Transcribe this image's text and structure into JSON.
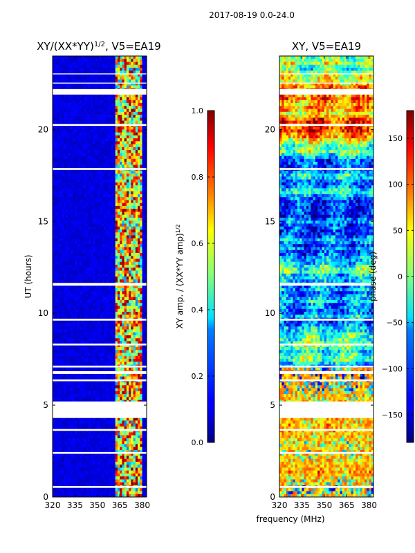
{
  "suptitle": "2017-08-19 0.0-24.0",
  "shared_xlabel": "frequency (MHz)",
  "colors": {
    "no_data": "#ffffff",
    "axis": "#000000"
  },
  "chart_data": [
    {
      "type": "heatmap",
      "title": "XY/(XX*YY)",
      "title_exponent": "1/2",
      "title_suffix": ", V5=EA19",
      "xlabel": "",
      "ylabel": "UT (hours)",
      "xlim": [
        320,
        383
      ],
      "ylim": [
        0,
        24
      ],
      "xticks": [
        320,
        335,
        350,
        365,
        380
      ],
      "yticks": [
        0,
        5,
        10,
        15,
        20
      ],
      "colorbar": {
        "label": "XY amp. / (XX*YY amp)",
        "label_exponent": "1/2",
        "range": [
          0.0,
          1.0
        ],
        "ticks": [
          0.0,
          0.2,
          0.4,
          0.6,
          0.8,
          1.0
        ],
        "tick_labels": [
          "0.0",
          "0.2",
          "0.4",
          "0.6",
          "0.8",
          "1.0"
        ],
        "colormap": "jet"
      },
      "data_gaps_hours": [
        [
          4.3,
          5.2
        ],
        [
          6.7,
          6.85
        ],
        [
          21.9,
          22.2
        ],
        [
          20.2,
          20.3
        ],
        [
          17.8,
          17.9
        ],
        [
          23.0,
          23.05
        ],
        [
          22.5,
          22.55
        ],
        [
          11.5,
          11.65
        ],
        [
          9.6,
          9.7
        ],
        [
          8.25,
          8.35
        ],
        [
          7.05,
          7.15
        ],
        [
          6.3,
          6.4
        ],
        [
          3.6,
          3.7
        ],
        [
          2.35,
          2.45
        ],
        [
          0.5,
          0.6
        ]
      ],
      "high_amplitude_band_mhz": [
        362,
        380
      ]
    },
    {
      "type": "heatmap",
      "title": "XY, V5=EA19",
      "xlabel": "",
      "ylabel": "",
      "xlim": [
        320,
        383
      ],
      "ylim": [
        0,
        24
      ],
      "xticks": [
        320,
        335,
        350,
        365,
        380
      ],
      "yticks": [
        0,
        5,
        10,
        15,
        20
      ],
      "colorbar": {
        "label": "phase (deg)",
        "range": [
          -180,
          180
        ],
        "ticks": [
          -150,
          -100,
          -50,
          0,
          50,
          100,
          150
        ],
        "tick_labels": [
          "−150",
          "−100",
          "−50",
          "0",
          "50",
          "100",
          "150"
        ],
        "colormap": "jet"
      },
      "data_gaps_hours": [
        [
          4.3,
          5.2
        ],
        [
          6.7,
          6.85
        ],
        [
          21.9,
          22.2
        ],
        [
          20.2,
          20.3
        ],
        [
          17.8,
          17.9
        ],
        [
          23.0,
          23.05
        ],
        [
          22.5,
          22.55
        ],
        [
          11.5,
          11.65
        ],
        [
          9.6,
          9.7
        ],
        [
          8.25,
          8.35
        ],
        [
          7.05,
          7.15
        ],
        [
          6.3,
          6.4
        ],
        [
          3.6,
          3.7
        ],
        [
          2.35,
          2.45
        ],
        [
          0.5,
          0.6
        ]
      ]
    }
  ]
}
